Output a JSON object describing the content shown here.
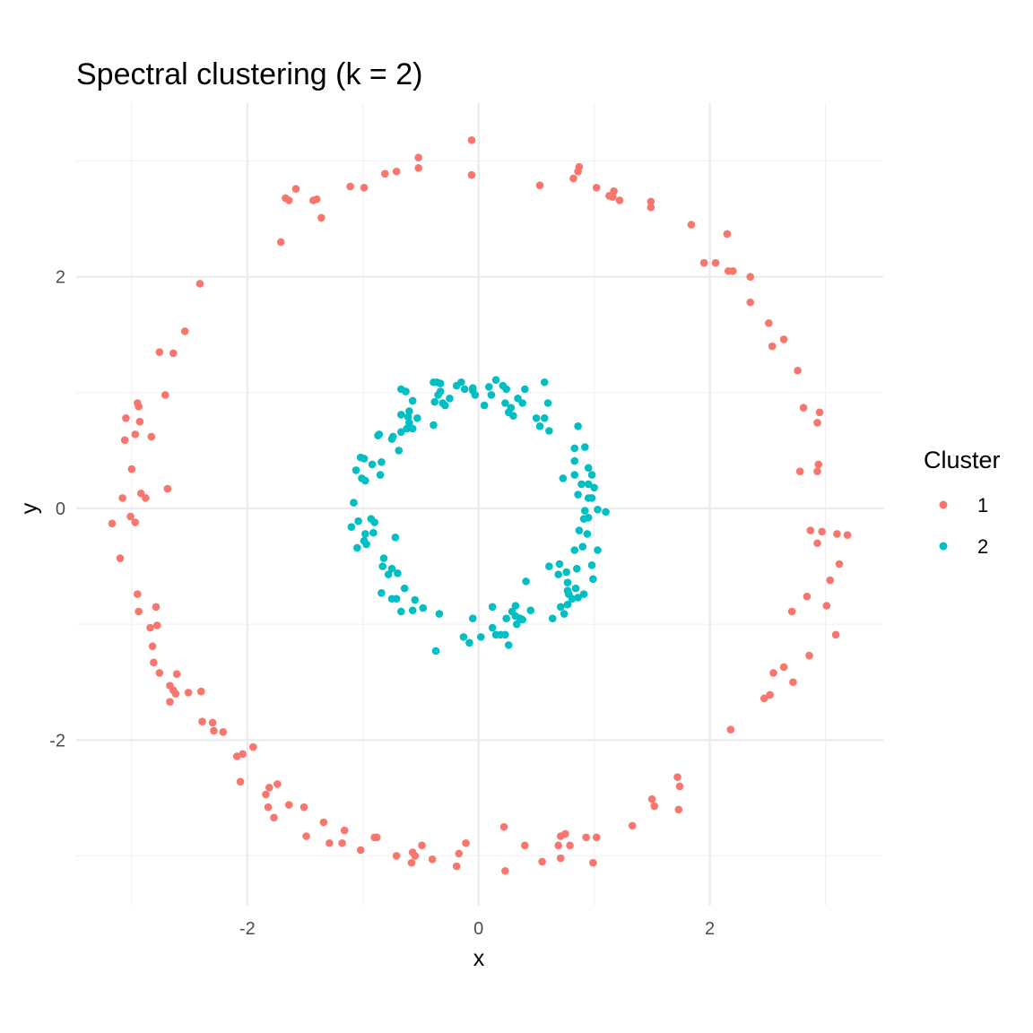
{
  "chart_data": {
    "type": "scatter",
    "title": "Spectral clustering (k = 2)",
    "xlabel": "x",
    "ylabel": "y",
    "xlim": [
      -3.48,
      3.5
    ],
    "ylim": [
      -3.43,
      3.5
    ],
    "x_ticks": [
      -2,
      0,
      2
    ],
    "y_ticks": [
      -2,
      0,
      2
    ],
    "x_tick_labels": [
      "-2",
      "0",
      "2"
    ],
    "y_tick_labels": [
      "-2",
      "0",
      "2"
    ],
    "grid": true,
    "legend": {
      "title": "Cluster",
      "placement": "right"
    },
    "series": [
      {
        "name": "1",
        "color": "#F8766D",
        "points": [
          [
            -0.06,
            3.18
          ],
          [
            -0.06,
            2.88
          ],
          [
            -0.52,
            3.03
          ],
          [
            -0.52,
            2.94
          ],
          [
            -0.71,
            2.91
          ],
          [
            -0.81,
            2.89
          ],
          [
            -0.99,
            2.77
          ],
          [
            -1.11,
            2.78
          ],
          [
            -1.36,
            2.51
          ],
          [
            -1.4,
            2.67
          ],
          [
            -1.43,
            2.66
          ],
          [
            -1.58,
            2.76
          ],
          [
            -1.64,
            2.66
          ],
          [
            -1.67,
            2.68
          ],
          [
            -1.71,
            2.3
          ],
          [
            -2.41,
            1.94
          ],
          [
            -2.54,
            1.53
          ],
          [
            -2.64,
            1.34
          ],
          [
            -2.76,
            1.35
          ],
          [
            -2.71,
            0.98
          ],
          [
            -2.95,
            0.91
          ],
          [
            -2.94,
            0.88
          ],
          [
            -3.05,
            0.78
          ],
          [
            -2.93,
            0.75
          ],
          [
            -2.97,
            0.64
          ],
          [
            -2.83,
            0.62
          ],
          [
            -3.06,
            0.59
          ],
          [
            -3.0,
            0.34
          ],
          [
            -2.69,
            0.17
          ],
          [
            -2.92,
            0.13
          ],
          [
            -2.88,
            0.09
          ],
          [
            -3.08,
            0.09
          ],
          [
            -3.01,
            -0.07
          ],
          [
            -2.97,
            -0.12
          ],
          [
            -3.17,
            -0.13
          ],
          [
            -3.1,
            -0.43
          ],
          [
            -2.95,
            -0.74
          ],
          [
            -2.79,
            -0.85
          ],
          [
            -2.94,
            -0.89
          ],
          [
            -2.78,
            -1.01
          ],
          [
            -2.84,
            -1.03
          ],
          [
            -2.82,
            -1.19
          ],
          [
            -2.81,
            -1.33
          ],
          [
            -2.76,
            -1.42
          ],
          [
            -2.61,
            -1.43
          ],
          [
            -2.67,
            -1.53
          ],
          [
            -2.64,
            -1.57
          ],
          [
            -2.62,
            -1.6
          ],
          [
            -2.51,
            -1.59
          ],
          [
            -2.4,
            -1.58
          ],
          [
            -2.67,
            -1.67
          ],
          [
            -2.39,
            -1.84
          ],
          [
            -2.3,
            -1.85
          ],
          [
            -2.29,
            -1.92
          ],
          [
            -2.21,
            -1.93
          ],
          [
            -1.95,
            -2.06
          ],
          [
            -2.04,
            -2.12
          ],
          [
            -2.09,
            -2.14
          ],
          [
            -2.06,
            -2.36
          ],
          [
            -1.74,
            -2.38
          ],
          [
            -1.81,
            -2.41
          ],
          [
            -1.84,
            -2.47
          ],
          [
            -1.82,
            -2.58
          ],
          [
            -1.77,
            -2.67
          ],
          [
            -1.64,
            -2.56
          ],
          [
            -1.51,
            -2.58
          ],
          [
            -1.34,
            -2.71
          ],
          [
            -1.49,
            -2.83
          ],
          [
            -1.16,
            -2.78
          ],
          [
            -1.29,
            -2.89
          ],
          [
            -1.18,
            -2.89
          ],
          [
            -1.02,
            -2.95
          ],
          [
            -0.9,
            -2.84
          ],
          [
            -0.88,
            -2.84
          ],
          [
            -0.71,
            -3.0
          ],
          [
            -0.57,
            -2.97
          ],
          [
            -0.55,
            -3.0
          ],
          [
            -0.58,
            -3.06
          ],
          [
            -0.49,
            -2.91
          ],
          [
            -0.4,
            -3.03
          ],
          [
            -0.19,
            -3.09
          ],
          [
            -0.17,
            -2.98
          ],
          [
            -0.11,
            -2.89
          ],
          [
            0.22,
            -2.75
          ],
          [
            0.23,
            -3.13
          ],
          [
            0.4,
            -2.91
          ],
          [
            0.55,
            -3.05
          ],
          [
            0.69,
            -2.91
          ],
          [
            0.71,
            -3.02
          ],
          [
            0.71,
            -2.83
          ],
          [
            0.75,
            -2.81
          ],
          [
            0.79,
            -2.91
          ],
          [
            0.93,
            -2.84
          ],
          [
            1.02,
            -2.84
          ],
          [
            0.99,
            -3.06
          ],
          [
            1.33,
            -2.74
          ],
          [
            1.5,
            -2.51
          ],
          [
            1.52,
            -2.57
          ],
          [
            1.72,
            -2.32
          ],
          [
            1.74,
            -2.4
          ],
          [
            1.73,
            -2.6
          ],
          [
            2.18,
            -1.91
          ],
          [
            2.47,
            -1.64
          ],
          [
            2.52,
            -1.61
          ],
          [
            2.55,
            -1.42
          ],
          [
            2.64,
            -1.37
          ],
          [
            2.72,
            -1.5
          ],
          [
            2.86,
            -1.27
          ],
          [
            2.71,
            -0.89
          ],
          [
            2.84,
            -0.76
          ],
          [
            3.01,
            -0.84
          ],
          [
            3.09,
            -1.09
          ],
          [
            3.04,
            -0.62
          ],
          [
            3.12,
            -0.48
          ],
          [
            2.87,
            -0.19
          ],
          [
            2.97,
            -0.2
          ],
          [
            3.1,
            -0.22
          ],
          [
            3.19,
            -0.23
          ],
          [
            2.93,
            -0.3
          ],
          [
            2.93,
            0.32
          ],
          [
            2.94,
            0.38
          ],
          [
            2.78,
            0.32
          ],
          [
            2.93,
            0.74
          ],
          [
            2.95,
            0.83
          ],
          [
            2.81,
            0.87
          ],
          [
            2.76,
            1.19
          ],
          [
            2.64,
            1.46
          ],
          [
            2.54,
            1.4
          ],
          [
            2.51,
            1.6
          ],
          [
            2.35,
            1.78
          ],
          [
            2.35,
            2.0
          ],
          [
            2.2,
            2.05
          ],
          [
            2.16,
            2.05
          ],
          [
            2.05,
            2.12
          ],
          [
            1.95,
            2.12
          ],
          [
            2.15,
            2.37
          ],
          [
            1.84,
            2.45
          ],
          [
            1.49,
            2.65
          ],
          [
            1.49,
            2.6
          ],
          [
            1.22,
            2.66
          ],
          [
            1.17,
            2.74
          ],
          [
            1.16,
            2.69
          ],
          [
            1.13,
            2.7
          ],
          [
            1.02,
            2.77
          ],
          [
            0.87,
            2.95
          ],
          [
            0.86,
            2.91
          ],
          [
            0.82,
            2.85
          ],
          [
            0.53,
            2.79
          ]
        ]
      },
      {
        "name": "2",
        "color": "#00BFC4",
        "points": [
          [
            -0.39,
            1.09
          ],
          [
            -0.36,
            1.09
          ],
          [
            -0.33,
            1.08
          ],
          [
            -0.33,
            1.01
          ],
          [
            -0.29,
            0.89
          ],
          [
            -0.25,
            0.95
          ],
          [
            -0.31,
            0.91
          ],
          [
            -0.19,
            1.06
          ],
          [
            -0.15,
            1.09
          ],
          [
            -0.12,
            1.03
          ],
          [
            -0.05,
            1.02
          ],
          [
            -0.05,
            1.04
          ],
          [
            -0.03,
            0.98
          ],
          [
            0.05,
            0.89
          ],
          [
            0.09,
            1.05
          ],
          [
            0.15,
            1.11
          ],
          [
            0.11,
            0.98
          ],
          [
            0.21,
            1.06
          ],
          [
            0.24,
            1.03
          ],
          [
            0.23,
            0.91
          ],
          [
            0.28,
            0.87
          ],
          [
            0.26,
            0.83
          ],
          [
            0.3,
            0.8
          ],
          [
            0.34,
            0.95
          ],
          [
            0.38,
            0.91
          ],
          [
            0.4,
            1.03
          ],
          [
            0.57,
            1.09
          ],
          [
            0.6,
            0.91
          ],
          [
            0.5,
            0.78
          ],
          [
            0.53,
            0.71
          ],
          [
            0.57,
            0.78
          ],
          [
            0.61,
            0.67
          ],
          [
            -0.35,
            0.98
          ],
          [
            -0.38,
            0.92
          ],
          [
            -0.67,
            1.03
          ],
          [
            -0.63,
            1.01
          ],
          [
            -0.57,
            0.93
          ],
          [
            -0.53,
            0.78
          ],
          [
            -0.6,
            0.84
          ],
          [
            -0.61,
            0.79
          ],
          [
            -0.67,
            0.81
          ],
          [
            -0.6,
            0.74
          ],
          [
            -0.62,
            0.69
          ],
          [
            -0.57,
            0.69
          ],
          [
            -0.67,
            0.66
          ],
          [
            -0.74,
            0.62
          ],
          [
            -0.75,
            0.6
          ],
          [
            -0.69,
            0.5
          ],
          [
            -0.86,
            0.64
          ],
          [
            -0.87,
            0.63
          ],
          [
            -0.39,
            0.72
          ],
          [
            -1.02,
            0.44
          ],
          [
            -0.99,
            0.43
          ],
          [
            -1.06,
            0.33
          ],
          [
            -0.92,
            0.38
          ],
          [
            -1.01,
            0.26
          ],
          [
            -0.98,
            0.24
          ],
          [
            -0.85,
            0.29
          ],
          [
            -0.84,
            0.4
          ],
          [
            -1.08,
            0.05
          ],
          [
            -1.1,
            -0.16
          ],
          [
            -1.04,
            -0.11
          ],
          [
            -0.93,
            -0.09
          ],
          [
            -0.9,
            -0.12
          ],
          [
            -0.98,
            -0.22
          ],
          [
            -0.99,
            -0.28
          ],
          [
            -0.97,
            -0.31
          ],
          [
            -1.05,
            -0.34
          ],
          [
            -0.91,
            -0.21
          ],
          [
            -0.72,
            -0.25
          ],
          [
            -0.82,
            -0.43
          ],
          [
            -0.83,
            -0.5
          ],
          [
            -0.75,
            -0.52
          ],
          [
            -0.7,
            -0.56
          ],
          [
            -0.78,
            -0.57
          ],
          [
            -0.75,
            -0.78
          ],
          [
            -0.71,
            -0.78
          ],
          [
            -0.84,
            -0.73
          ],
          [
            -0.64,
            -0.69
          ],
          [
            -0.55,
            -0.79
          ],
          [
            -0.67,
            -0.89
          ],
          [
            -0.57,
            -0.88
          ],
          [
            -0.48,
            -0.86
          ],
          [
            -0.34,
            -0.91
          ],
          [
            -0.37,
            -1.23
          ],
          [
            -0.05,
            -0.95
          ],
          [
            -0.13,
            -1.11
          ],
          [
            -0.08,
            -1.16
          ],
          [
            0.02,
            -1.11
          ],
          [
            0.12,
            -0.85
          ],
          [
            0.12,
            -1.03
          ],
          [
            0.15,
            -1.09
          ],
          [
            0.19,
            -1.09
          ],
          [
            0.23,
            -1.09
          ],
          [
            0.26,
            -1.18
          ],
          [
            0.24,
            -0.95
          ],
          [
            0.29,
            -0.89
          ],
          [
            0.32,
            -0.93
          ],
          [
            0.36,
            -0.95
          ],
          [
            0.33,
            -1.0
          ],
          [
            0.38,
            -0.96
          ],
          [
            0.32,
            -0.84
          ],
          [
            0.45,
            -0.88
          ],
          [
            0.41,
            -0.63
          ],
          [
            0.64,
            -0.95
          ],
          [
            0.71,
            -0.85
          ],
          [
            0.74,
            -0.91
          ],
          [
            0.77,
            -0.83
          ],
          [
            0.61,
            -0.5
          ],
          [
            0.7,
            -0.48
          ],
          [
            0.69,
            -0.57
          ],
          [
            0.76,
            -0.55
          ],
          [
            0.77,
            -0.64
          ],
          [
            0.77,
            -0.71
          ],
          [
            0.78,
            -0.74
          ],
          [
            0.81,
            -0.78
          ],
          [
            0.91,
            -0.74
          ],
          [
            0.86,
            -0.77
          ],
          [
            0.84,
            -0.69
          ],
          [
            0.99,
            -0.61
          ],
          [
            0.85,
            -0.52
          ],
          [
            0.83,
            -0.36
          ],
          [
            0.9,
            -0.33
          ],
          [
            0.98,
            -0.49
          ],
          [
            1.03,
            -0.36
          ],
          [
            0.94,
            -0.22
          ],
          [
            0.87,
            -0.19
          ],
          [
            0.91,
            -0.09
          ],
          [
            0.95,
            -0.08
          ],
          [
            0.92,
            -0.02
          ],
          [
            1.03,
            -0.01
          ],
          [
            1.1,
            -0.03
          ],
          [
            0.95,
            0.09
          ],
          [
            0.98,
            0.09
          ],
          [
            0.86,
            0.12
          ],
          [
            0.83,
            0.29
          ],
          [
            0.89,
            0.21
          ],
          [
            0.98,
            0.29
          ],
          [
            1.0,
            0.18
          ],
          [
            0.95,
            0.35
          ],
          [
            0.95,
            0.21
          ],
          [
            0.83,
            0.52
          ],
          [
            0.92,
            0.53
          ],
          [
            0.83,
            0.41
          ],
          [
            0.73,
            0.26
          ],
          [
            0.86,
            0.71
          ]
        ]
      }
    ]
  }
}
